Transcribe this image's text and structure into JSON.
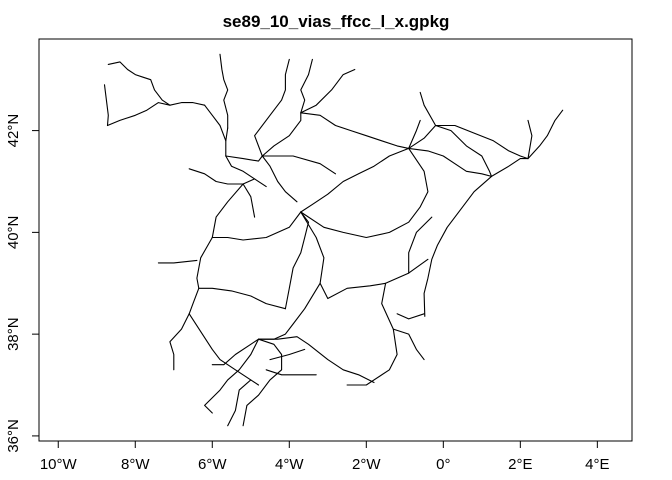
{
  "title": "se89_10_vias_ffcc_l_x.gpkg",
  "chart_data": {
    "type": "map",
    "title": "se89_10_vias_ffcc_l_x.gpkg",
    "xlim": [
      -10.5,
      4.9
    ],
    "ylim": [
      35.9,
      43.8
    ],
    "x_ticks": [
      {
        "value": -10,
        "label": "10°W"
      },
      {
        "value": -8,
        "label": "8°W"
      },
      {
        "value": -6,
        "label": "6°W"
      },
      {
        "value": -4,
        "label": "4°W"
      },
      {
        "value": -2,
        "label": "2°W"
      },
      {
        "value": 0,
        "label": "0°"
      },
      {
        "value": 2,
        "label": "2°E"
      },
      {
        "value": 4,
        "label": "4°E"
      }
    ],
    "y_ticks": [
      {
        "value": 36,
        "label": "36°N"
      },
      {
        "value": 38,
        "label": "38°N"
      },
      {
        "value": 40,
        "label": "40°N"
      },
      {
        "value": 42,
        "label": "42°N"
      }
    ],
    "line_color": "#000000",
    "lines": [
      [
        [
          -8.7,
          43.3
        ],
        [
          -8.4,
          43.35
        ],
        [
          -8.2,
          43.2
        ],
        [
          -8.0,
          43.1
        ],
        [
          -7.8,
          43.05
        ],
        [
          -7.6,
          43.0
        ],
        [
          -7.5,
          42.8
        ],
        [
          -7.3,
          42.6
        ],
        [
          -7.1,
          42.5
        ]
      ],
      [
        [
          -8.8,
          42.9
        ],
        [
          -8.75,
          42.6
        ],
        [
          -8.7,
          42.3
        ],
        [
          -8.72,
          42.1
        ]
      ],
      [
        [
          -8.72,
          42.1
        ],
        [
          -8.4,
          42.2
        ],
        [
          -8.0,
          42.3
        ],
        [
          -7.7,
          42.4
        ],
        [
          -7.4,
          42.55
        ],
        [
          -7.1,
          42.5
        ],
        [
          -6.8,
          42.55
        ],
        [
          -6.5,
          42.55
        ],
        [
          -6.2,
          42.5
        ]
      ],
      [
        [
          -6.2,
          42.5
        ],
        [
          -6.0,
          42.3
        ],
        [
          -5.8,
          42.1
        ],
        [
          -5.65,
          41.8
        ],
        [
          -5.65,
          41.5
        ]
      ],
      [
        [
          -5.8,
          43.5
        ],
        [
          -5.75,
          43.2
        ],
        [
          -5.7,
          43.0
        ],
        [
          -5.6,
          42.8
        ],
        [
          -5.7,
          42.6
        ],
        [
          -5.6,
          42.3
        ],
        [
          -5.6,
          42.05
        ]
      ],
      [
        [
          -5.6,
          42.05
        ],
        [
          -5.65,
          41.8
        ]
      ],
      [
        [
          -5.65,
          41.5
        ],
        [
          -5.5,
          41.3
        ],
        [
          -5.2,
          41.2
        ],
        [
          -4.9,
          41.05
        ],
        [
          -4.6,
          40.9
        ]
      ],
      [
        [
          -6.6,
          41.25
        ],
        [
          -6.2,
          41.15
        ],
        [
          -5.9,
          41.0
        ],
        [
          -5.6,
          40.95
        ],
        [
          -5.2,
          40.95
        ],
        [
          -4.9,
          41.05
        ]
      ],
      [
        [
          -5.2,
          40.95
        ],
        [
          -5.0,
          40.7
        ],
        [
          -4.9,
          40.3
        ]
      ],
      [
        [
          -5.65,
          41.5
        ],
        [
          -5.2,
          41.45
        ],
        [
          -4.8,
          41.4
        ],
        [
          -4.7,
          41.5
        ]
      ],
      [
        [
          -4.7,
          41.5
        ],
        [
          -4.5,
          41.3
        ],
        [
          -4.3,
          41.0
        ],
        [
          -4.1,
          40.8
        ],
        [
          -3.8,
          40.6
        ]
      ],
      [
        [
          -4.7,
          41.5
        ],
        [
          -4.4,
          41.7
        ],
        [
          -4.0,
          41.9
        ],
        [
          -3.7,
          42.2
        ],
        [
          -3.7,
          42.35
        ],
        [
          -3.6,
          42.6
        ],
        [
          -3.7,
          42.8
        ],
        [
          -3.5,
          43.1
        ],
        [
          -3.4,
          43.4
        ]
      ],
      [
        [
          -4.7,
          41.5
        ],
        [
          -4.9,
          41.9
        ],
        [
          -4.5,
          42.3
        ],
        [
          -4.2,
          42.6
        ],
        [
          -4.1,
          42.8
        ],
        [
          -4.1,
          43.1
        ],
        [
          -4.0,
          43.4
        ]
      ],
      [
        [
          -3.7,
          42.35
        ],
        [
          -3.3,
          42.5
        ],
        [
          -2.9,
          42.8
        ],
        [
          -2.6,
          43.1
        ],
        [
          -2.3,
          43.2
        ]
      ],
      [
        [
          -3.7,
          42.35
        ],
        [
          -3.2,
          42.3
        ],
        [
          -2.8,
          42.1
        ],
        [
          -2.4,
          42.0
        ],
        [
          -2.0,
          41.9
        ],
        [
          -1.6,
          41.8
        ],
        [
          -1.2,
          41.7
        ],
        [
          -0.9,
          41.65
        ]
      ],
      [
        [
          -0.9,
          41.65
        ],
        [
          -1.4,
          41.5
        ],
        [
          -1.8,
          41.3
        ],
        [
          -2.2,
          41.15
        ],
        [
          -2.6,
          41.0
        ],
        [
          -3.0,
          40.75
        ],
        [
          -3.4,
          40.55
        ],
        [
          -3.7,
          40.4
        ]
      ],
      [
        [
          -4.7,
          41.5
        ],
        [
          -3.9,
          41.5
        ],
        [
          -3.2,
          41.35
        ],
        [
          -2.8,
          41.15
        ]
      ],
      [
        [
          -0.9,
          41.65
        ],
        [
          -0.5,
          41.85
        ],
        [
          -0.2,
          42.1
        ],
        [
          -0.5,
          42.5
        ],
        [
          -0.6,
          42.75
        ]
      ],
      [
        [
          -0.9,
          41.65
        ],
        [
          -0.4,
          41.6
        ],
        [
          0.0,
          41.5
        ],
        [
          0.3,
          41.35
        ],
        [
          0.6,
          41.2
        ],
        [
          1.0,
          41.15
        ],
        [
          1.25,
          41.1
        ]
      ],
      [
        [
          -0.9,
          41.65
        ],
        [
          -0.7,
          42.0
        ],
        [
          -0.6,
          42.2
        ]
      ],
      [
        [
          -0.9,
          41.65
        ],
        [
          -0.5,
          41.2
        ],
        [
          -0.4,
          40.8
        ],
        [
          -0.6,
          40.5
        ],
        [
          -0.9,
          40.2
        ],
        [
          -1.4,
          40.0
        ],
        [
          -2.0,
          39.9
        ],
        [
          -2.6,
          40.0
        ],
        [
          -3.1,
          40.1
        ],
        [
          -3.7,
          40.4
        ]
      ],
      [
        [
          -0.2,
          42.1
        ],
        [
          0.2,
          42.0
        ],
        [
          0.6,
          41.7
        ],
        [
          1.0,
          41.5
        ],
        [
          1.2,
          41.2
        ],
        [
          1.25,
          41.1
        ]
      ],
      [
        [
          -0.2,
          42.1
        ],
        [
          0.3,
          42.1
        ],
        [
          0.8,
          41.95
        ],
        [
          1.3,
          41.8
        ],
        [
          1.7,
          41.6
        ],
        [
          2.0,
          41.5
        ],
        [
          2.2,
          41.45
        ]
      ],
      [
        [
          1.25,
          41.1
        ],
        [
          1.7,
          41.3
        ],
        [
          2.0,
          41.45
        ],
        [
          2.2,
          41.45
        ],
        [
          2.5,
          41.7
        ],
        [
          2.7,
          41.9
        ],
        [
          2.9,
          42.2
        ],
        [
          3.1,
          42.4
        ]
      ],
      [
        [
          2.2,
          41.45
        ],
        [
          2.3,
          41.9
        ],
        [
          2.2,
          42.2
        ]
      ],
      [
        [
          1.25,
          41.1
        ],
        [
          0.8,
          40.8
        ],
        [
          0.5,
          40.5
        ],
        [
          0.1,
          40.1
        ],
        [
          -0.15,
          39.75
        ],
        [
          -0.3,
          39.47
        ],
        [
          -0.4,
          39.1
        ],
        [
          -0.5,
          38.8
        ],
        [
          -0.48,
          38.35
        ]
      ],
      [
        [
          -3.7,
          40.4
        ],
        [
          -3.5,
          40.2
        ],
        [
          -3.6,
          39.9
        ],
        [
          -3.7,
          39.6
        ],
        [
          -3.9,
          39.3
        ],
        [
          -4.0,
          38.9
        ],
        [
          -4.1,
          38.5
        ]
      ],
      [
        [
          -3.7,
          40.4
        ],
        [
          -4.0,
          40.1
        ],
        [
          -4.6,
          39.9
        ],
        [
          -5.2,
          39.85
        ],
        [
          -5.6,
          39.9
        ],
        [
          -6.0,
          39.9
        ]
      ],
      [
        [
          -6.0,
          39.9
        ],
        [
          -5.9,
          40.3
        ],
        [
          -5.6,
          40.6
        ],
        [
          -5.2,
          40.95
        ]
      ],
      [
        [
          -6.0,
          39.9
        ],
        [
          -6.3,
          39.5
        ],
        [
          -6.4,
          39.1
        ],
        [
          -6.35,
          38.9
        ],
        [
          -6.5,
          38.6
        ],
        [
          -6.6,
          38.4
        ]
      ],
      [
        [
          -6.35,
          38.9
        ],
        [
          -6.0,
          38.9
        ],
        [
          -5.5,
          38.85
        ],
        [
          -5.0,
          38.75
        ],
        [
          -4.6,
          38.6
        ],
        [
          -4.1,
          38.5
        ]
      ],
      [
        [
          -6.4,
          39.45
        ],
        [
          -7.0,
          39.4
        ],
        [
          -7.4,
          39.4
        ]
      ],
      [
        [
          -3.7,
          40.4
        ],
        [
          -3.3,
          39.9
        ],
        [
          -3.1,
          39.5
        ],
        [
          -3.2,
          39.0
        ],
        [
          -3.0,
          38.7
        ],
        [
          -2.5,
          38.9
        ],
        [
          -1.9,
          38.95
        ],
        [
          -1.5,
          39.0
        ],
        [
          -0.9,
          39.2
        ],
        [
          -0.4,
          39.47
        ]
      ],
      [
        [
          -3.2,
          39.0
        ],
        [
          -3.6,
          38.5
        ],
        [
          -3.9,
          38.2
        ],
        [
          -4.1,
          38.0
        ],
        [
          -4.4,
          37.9
        ],
        [
          -4.8,
          37.9
        ]
      ],
      [
        [
          -1.5,
          39.0
        ],
        [
          -1.6,
          38.6
        ],
        [
          -1.3,
          38.1
        ],
        [
          -1.2,
          37.6
        ],
        [
          -1.4,
          37.3
        ],
        [
          -2.0,
          37.0
        ],
        [
          -2.5,
          37.0
        ]
      ],
      [
        [
          -1.3,
          38.1
        ],
        [
          -0.9,
          38.0
        ],
        [
          -0.7,
          37.7
        ],
        [
          -0.5,
          37.5
        ]
      ],
      [
        [
          -0.5,
          38.4
        ],
        [
          -0.9,
          38.3
        ],
        [
          -1.2,
          38.4
        ]
      ],
      [
        [
          -0.9,
          39.2
        ],
        [
          -0.9,
          39.6
        ],
        [
          -0.7,
          40.0
        ],
        [
          -0.3,
          40.3
        ]
      ],
      [
        [
          -6.6,
          38.4
        ],
        [
          -6.8,
          38.1
        ],
        [
          -7.1,
          37.85
        ],
        [
          -7.0,
          37.6
        ],
        [
          -7.0,
          37.3
        ]
      ],
      [
        [
          -6.6,
          38.4
        ],
        [
          -6.3,
          38.05
        ],
        [
          -6.0,
          37.7
        ],
        [
          -5.8,
          37.5
        ],
        [
          -5.4,
          37.3
        ],
        [
          -5.0,
          37.1
        ],
        [
          -4.8,
          37.0
        ]
      ],
      [
        [
          -6.0,
          37.4
        ],
        [
          -5.7,
          37.4
        ],
        [
          -5.4,
          37.6
        ],
        [
          -5.0,
          37.8
        ],
        [
          -4.8,
          37.9
        ]
      ],
      [
        [
          -4.8,
          37.9
        ],
        [
          -5.0,
          37.6
        ],
        [
          -5.3,
          37.3
        ],
        [
          -5.6,
          37.1
        ],
        [
          -5.8,
          36.9
        ],
        [
          -6.2,
          36.6
        ],
        [
          -6.0,
          36.45
        ]
      ],
      [
        [
          -4.8,
          37.9
        ],
        [
          -4.3,
          37.9
        ],
        [
          -3.8,
          37.95
        ],
        [
          -3.5,
          37.8
        ],
        [
          -3.0,
          37.5
        ],
        [
          -2.6,
          37.3
        ],
        [
          -2.2,
          37.2
        ],
        [
          -1.8,
          37.05
        ]
      ],
      [
        [
          -4.8,
          37.9
        ],
        [
          -4.4,
          37.8
        ],
        [
          -4.2,
          37.6
        ],
        [
          -4.2,
          37.3
        ],
        [
          -4.5,
          37.1
        ],
        [
          -4.8,
          36.8
        ],
        [
          -5.1,
          36.6
        ],
        [
          -5.2,
          36.2
        ]
      ],
      [
        [
          -4.5,
          37.5
        ],
        [
          -4.0,
          37.6
        ],
        [
          -3.6,
          37.7
        ]
      ],
      [
        [
          -4.6,
          37.3
        ],
        [
          -4.2,
          37.2
        ],
        [
          -3.7,
          37.2
        ],
        [
          -3.3,
          37.2
        ]
      ],
      [
        [
          -5.0,
          37.1
        ],
        [
          -5.3,
          36.9
        ],
        [
          -5.4,
          36.5
        ],
        [
          -5.6,
          36.2
        ]
      ]
    ]
  }
}
